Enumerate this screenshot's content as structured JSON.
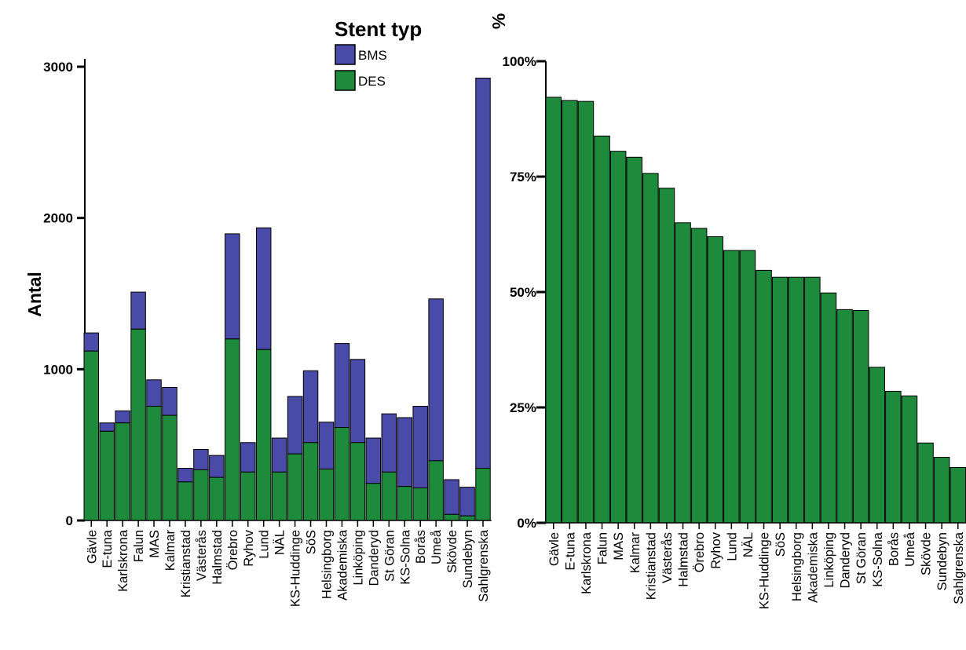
{
  "colors": {
    "bms": "#4a4aa8",
    "des": "#1e8a3c",
    "stroke": "#000000"
  },
  "legend": {
    "title": "Stent typ",
    "items": [
      {
        "label": "BMS",
        "color": "#4a4aa8"
      },
      {
        "label": "DES",
        "color": "#1e8a3c"
      }
    ]
  },
  "chart_data": [
    {
      "type": "bar",
      "stacked": true,
      "ylabel": "Antal",
      "ylim": [
        0,
        3000
      ],
      "yticks": [
        "0",
        "1000",
        "2000",
        "3000"
      ],
      "grid": false,
      "legend_position": "top-center",
      "categories": [
        "Gävle",
        "E-tuna",
        "Karlskrona",
        "Falun",
        "MAS",
        "Kalmar",
        "Kristianstad",
        "Västerås",
        "Halmstad",
        "Örebro",
        "Ryhov",
        "Lund",
        "NÄL",
        "KS-Huddinge",
        "SöS",
        "Helsingborg",
        "Akademiska",
        "Linköping",
        "Danderyd",
        "St Göran",
        "KS-Solna",
        "Borås",
        "Umeå",
        "Skövde",
        "Sundebyn",
        "Sahlgrenska"
      ],
      "series": [
        {
          "name": "DES",
          "values": [
            1120,
            590,
            645,
            1265,
            755,
            695,
            255,
            335,
            285,
            1200,
            320,
            1130,
            320,
            440,
            515,
            340,
            615,
            515,
            245,
            320,
            225,
            215,
            395,
            40,
            30,
            345
          ]
        },
        {
          "name": "BMS",
          "values": [
            120,
            55,
            80,
            245,
            175,
            185,
            90,
            135,
            145,
            695,
            195,
            805,
            225,
            380,
            475,
            310,
            555,
            550,
            300,
            385,
            455,
            540,
            1070,
            230,
            190,
            2580
          ]
        }
      ]
    },
    {
      "type": "bar",
      "title": "%",
      "ylim": [
        0,
        100
      ],
      "yticks": [
        "0%",
        "25%",
        "50%",
        "75%",
        "100%"
      ],
      "grid": false,
      "categories": [
        "Gävle",
        "E-tuna",
        "Karlskrona",
        "Falun",
        "MAS",
        "Kalmar",
        "Kristianstad",
        "Västerås",
        "Halmstad",
        "Örebro",
        "Ryhov",
        "Lund",
        "NÄL",
        "KS-Huddinge",
        "SöS",
        "Helsingborg",
        "Akademiska",
        "Linköping",
        "Danderyd",
        "St Göran",
        "KS-Solna",
        "Borås",
        "Umeå",
        "Skövde",
        "Sundebyn",
        "Sahlgrenska"
      ],
      "series": [
        {
          "name": "DES",
          "values": [
            92.2,
            91.5,
            91.3,
            83.8,
            80.5,
            79.2,
            75.7,
            72.5,
            65.0,
            63.8,
            62.0,
            59.0,
            59.0,
            54.7,
            53.2,
            53.2,
            53.2,
            49.8,
            46.2,
            46.0,
            33.7,
            28.5,
            27.5,
            17.3,
            14.2,
            12.0
          ]
        }
      ]
    }
  ]
}
